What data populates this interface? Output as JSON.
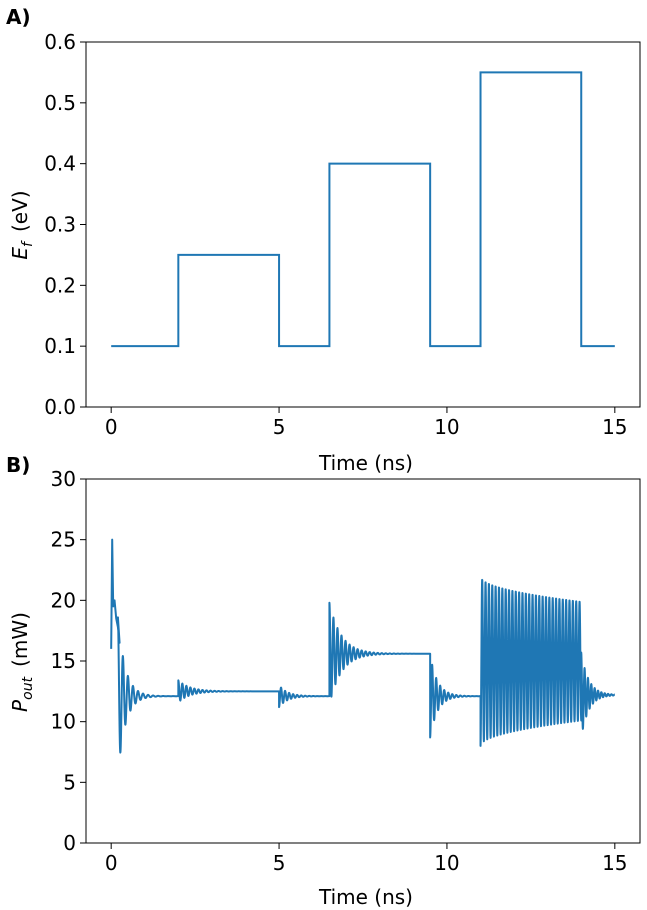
{
  "colors": {
    "series": "#1f77b4",
    "axes": "#000000",
    "background": "#ffffff"
  },
  "chart_data": [
    {
      "type": "line",
      "panel_label": "A)",
      "xlabel": "Time (ns)",
      "ylabel_main": "E",
      "ylabel_sub": "f",
      "ylabel_unit": "(eV)",
      "xlim": [
        -0.75,
        15.75
      ],
      "ylim": [
        0.0,
        0.6
      ],
      "xticks": [
        0,
        5,
        10,
        15
      ],
      "yticks": [
        0.0,
        0.1,
        0.2,
        0.3,
        0.4,
        0.5,
        0.6
      ],
      "xtick_labels": [
        "0",
        "5",
        "10",
        "15"
      ],
      "ytick_labels": [
        "0.0",
        "0.1",
        "0.2",
        "0.3",
        "0.4",
        "0.5",
        "0.6"
      ],
      "grid": false,
      "series": [
        {
          "x": [
            0,
            2.0,
            2.0,
            5.0,
            5.0,
            6.5,
            6.5,
            9.5,
            9.5,
            11.0,
            11.0,
            14.0,
            14.0,
            15.0
          ],
          "y": [
            0.1,
            0.1,
            0.25,
            0.25,
            0.1,
            0.1,
            0.4,
            0.4,
            0.1,
            0.1,
            0.55,
            0.55,
            0.1,
            0.1
          ]
        }
      ]
    },
    {
      "type": "line",
      "panel_label": "B)",
      "xlabel": "Time (ns)",
      "ylabel_main": "P",
      "ylabel_sub": "out",
      "ylabel_unit": "(mW)",
      "xlim": [
        -0.75,
        15.75
      ],
      "ylim": [
        0,
        30
      ],
      "xticks": [
        0,
        5,
        10,
        15
      ],
      "yticks": [
        0,
        5,
        10,
        15,
        20,
        25,
        30
      ],
      "xtick_labels": [
        "0",
        "5",
        "10",
        "15"
      ],
      "ytick_labels": [
        "0",
        "5",
        "10",
        "15",
        "20",
        "25",
        "30"
      ],
      "grid": false,
      "series": [
        {
          "segments": [
            {
              "type": "spike",
              "x": [
                0.0,
                0.03,
                0.06,
                0.1,
                0.15,
                0.2,
                0.25
              ],
              "y": [
                16.0,
                25.0,
                19.5,
                20.0,
                18.5,
                17.8,
                16.5
              ]
            },
            {
              "type": "ring",
              "t_start": 0.2,
              "t_end": 2.0,
              "base": 12.1,
              "amp": 6.5,
              "period": 0.15,
              "decay": 0.22
            },
            {
              "type": "ring",
              "t_start": 2.0,
              "t_end": 5.0,
              "base": 12.5,
              "amp": 0.9,
              "period": 0.12,
              "decay": 0.35
            },
            {
              "type": "ring",
              "t_start": 5.0,
              "t_end": 6.5,
              "base": 12.1,
              "amp": -0.9,
              "period": 0.12,
              "decay": 0.25
            },
            {
              "type": "ring",
              "t_start": 6.5,
              "t_end": 9.5,
              "base": 15.6,
              "amp": 4.2,
              "period": 0.12,
              "decay": 0.35
            },
            {
              "type": "ring",
              "t_start": 9.5,
              "t_end": 11.0,
              "base": 12.1,
              "amp": -3.4,
              "period": 0.12,
              "decay": 0.22
            },
            {
              "type": "sustained",
              "t_start": 11.0,
              "t_end": 14.0,
              "base": 15.0,
              "amp_start": 7.0,
              "amp_end": 4.9,
              "period": 0.1
            },
            {
              "type": "ring",
              "t_start": 14.0,
              "t_end": 15.0,
              "base": 12.2,
              "amp": 3.5,
              "period": 0.1,
              "decay": 0.22
            }
          ]
        }
      ]
    }
  ]
}
